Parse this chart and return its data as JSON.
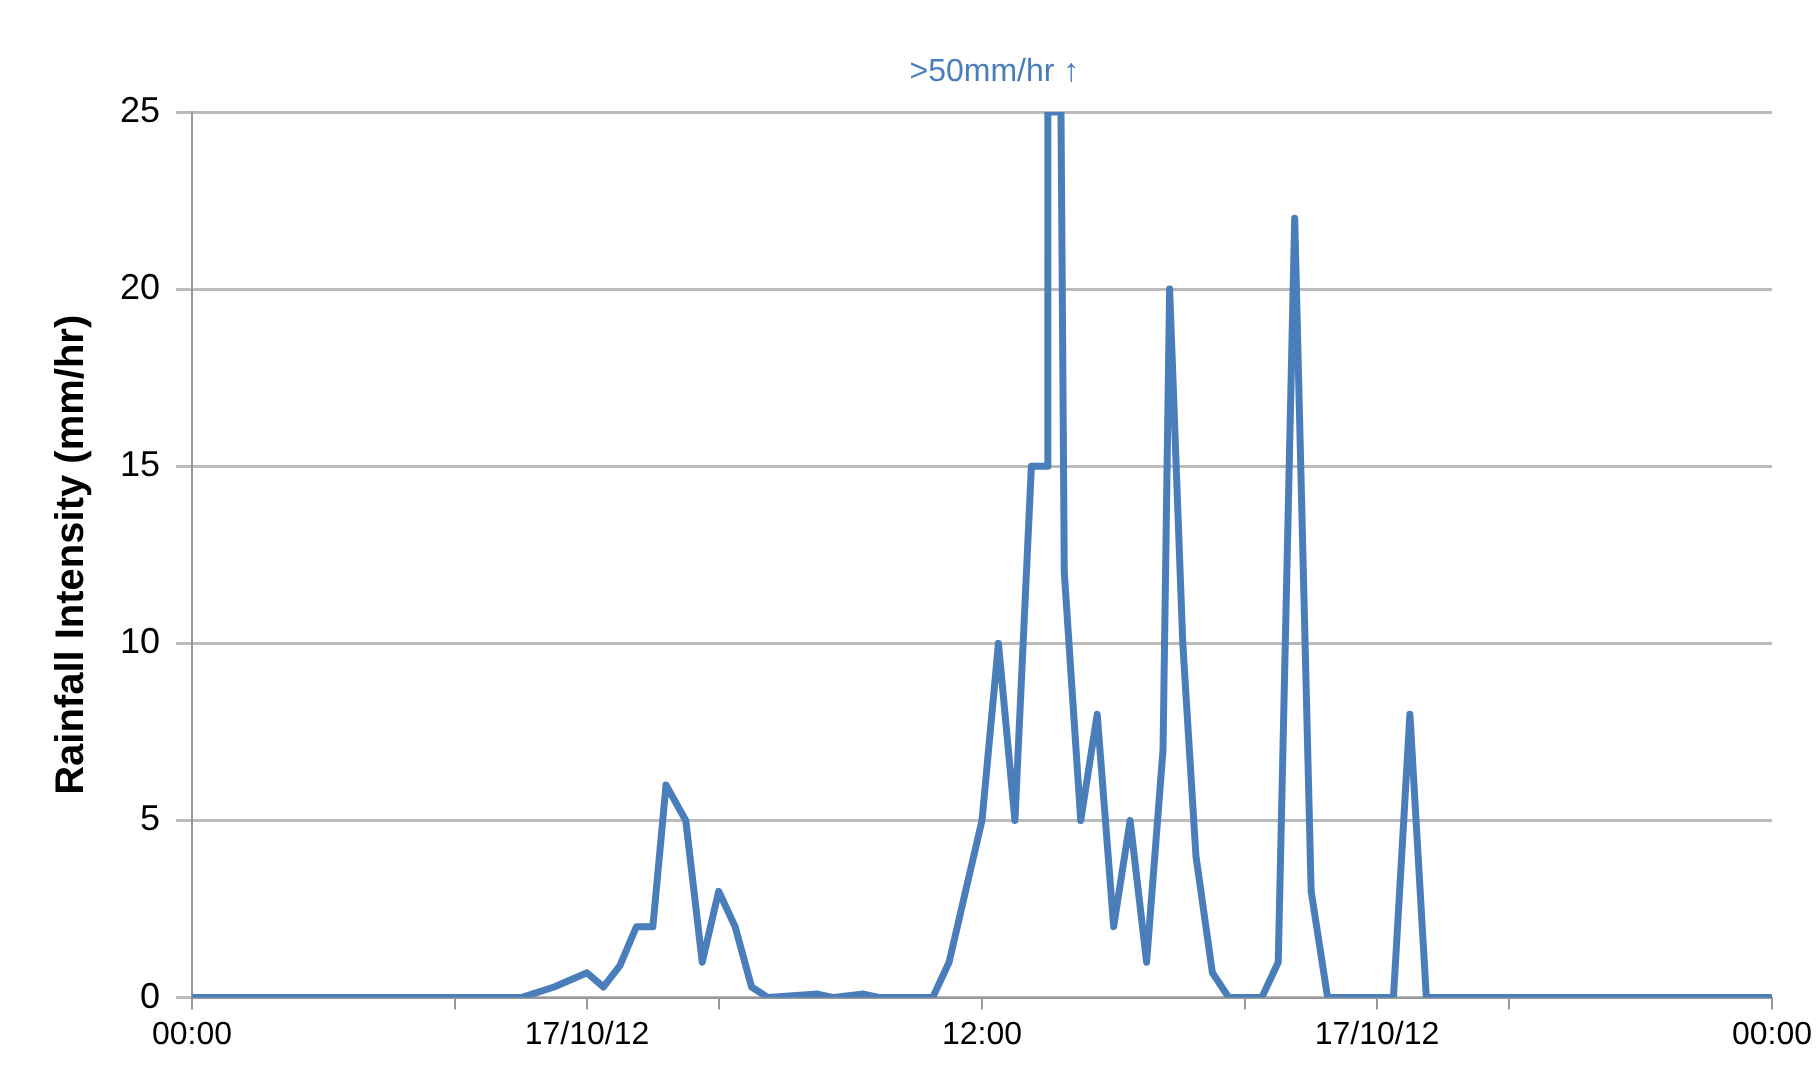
{
  "chart_data": {
    "type": "line",
    "ylabel": "Rainfall Intensity (mm/hr)",
    "xlim": [
      0,
      24
    ],
    "xticks": [
      {
        "value": 0,
        "label": "00:00"
      },
      {
        "value": 4,
        "label": null
      },
      {
        "value": 6,
        "label": "17/10/12"
      },
      {
        "value": 8,
        "label": null
      },
      {
        "value": 12,
        "label": "12:00"
      },
      {
        "value": 16,
        "label": null
      },
      {
        "value": 18,
        "label": "17/10/12"
      },
      {
        "value": 20,
        "label": null
      },
      {
        "value": 24,
        "label": "00:00"
      }
    ],
    "ylim": [
      0,
      25
    ],
    "yticks": [
      0,
      5,
      10,
      15,
      20,
      25
    ],
    "grid": "y",
    "legend": false,
    "marker": "none",
    "line_style": "solid",
    "annotations": [
      {
        "text": ">50mm/hr ↑",
        "x": 13.1,
        "y": 25
      }
    ],
    "series": [
      {
        "color": "#4a7ebb",
        "x": [
          0,
          5.0,
          5.5,
          6.0,
          6.25,
          6.5,
          6.75,
          7.0,
          7.2,
          7.5,
          7.75,
          8.0,
          8.25,
          8.5,
          8.75,
          9.5,
          9.75,
          10.2,
          10.45,
          11.25,
          11.5,
          11.75,
          12.0,
          12.25,
          12.5,
          12.75,
          13.0,
          13.0,
          13.2,
          13.25,
          13.5,
          13.75,
          14.0,
          14.25,
          14.5,
          14.75,
          14.85,
          15.05,
          15.25,
          15.5,
          15.75,
          16.25,
          16.5,
          16.75,
          17.0,
          17.25,
          18.25,
          18.5,
          18.75,
          24
        ],
        "values": [
          0,
          0,
          0.3,
          0.7,
          0.3,
          0.9,
          2,
          2,
          6,
          5,
          1,
          3,
          2,
          0.3,
          0,
          0.1,
          0,
          0.1,
          0,
          0,
          1,
          3,
          5,
          10,
          5,
          15,
          15,
          25,
          25,
          12,
          5,
          8,
          2,
          5,
          1,
          7,
          20,
          10,
          4,
          0.7,
          0,
          0,
          1,
          22,
          3,
          0,
          0,
          8,
          0,
          0
        ]
      }
    ]
  }
}
